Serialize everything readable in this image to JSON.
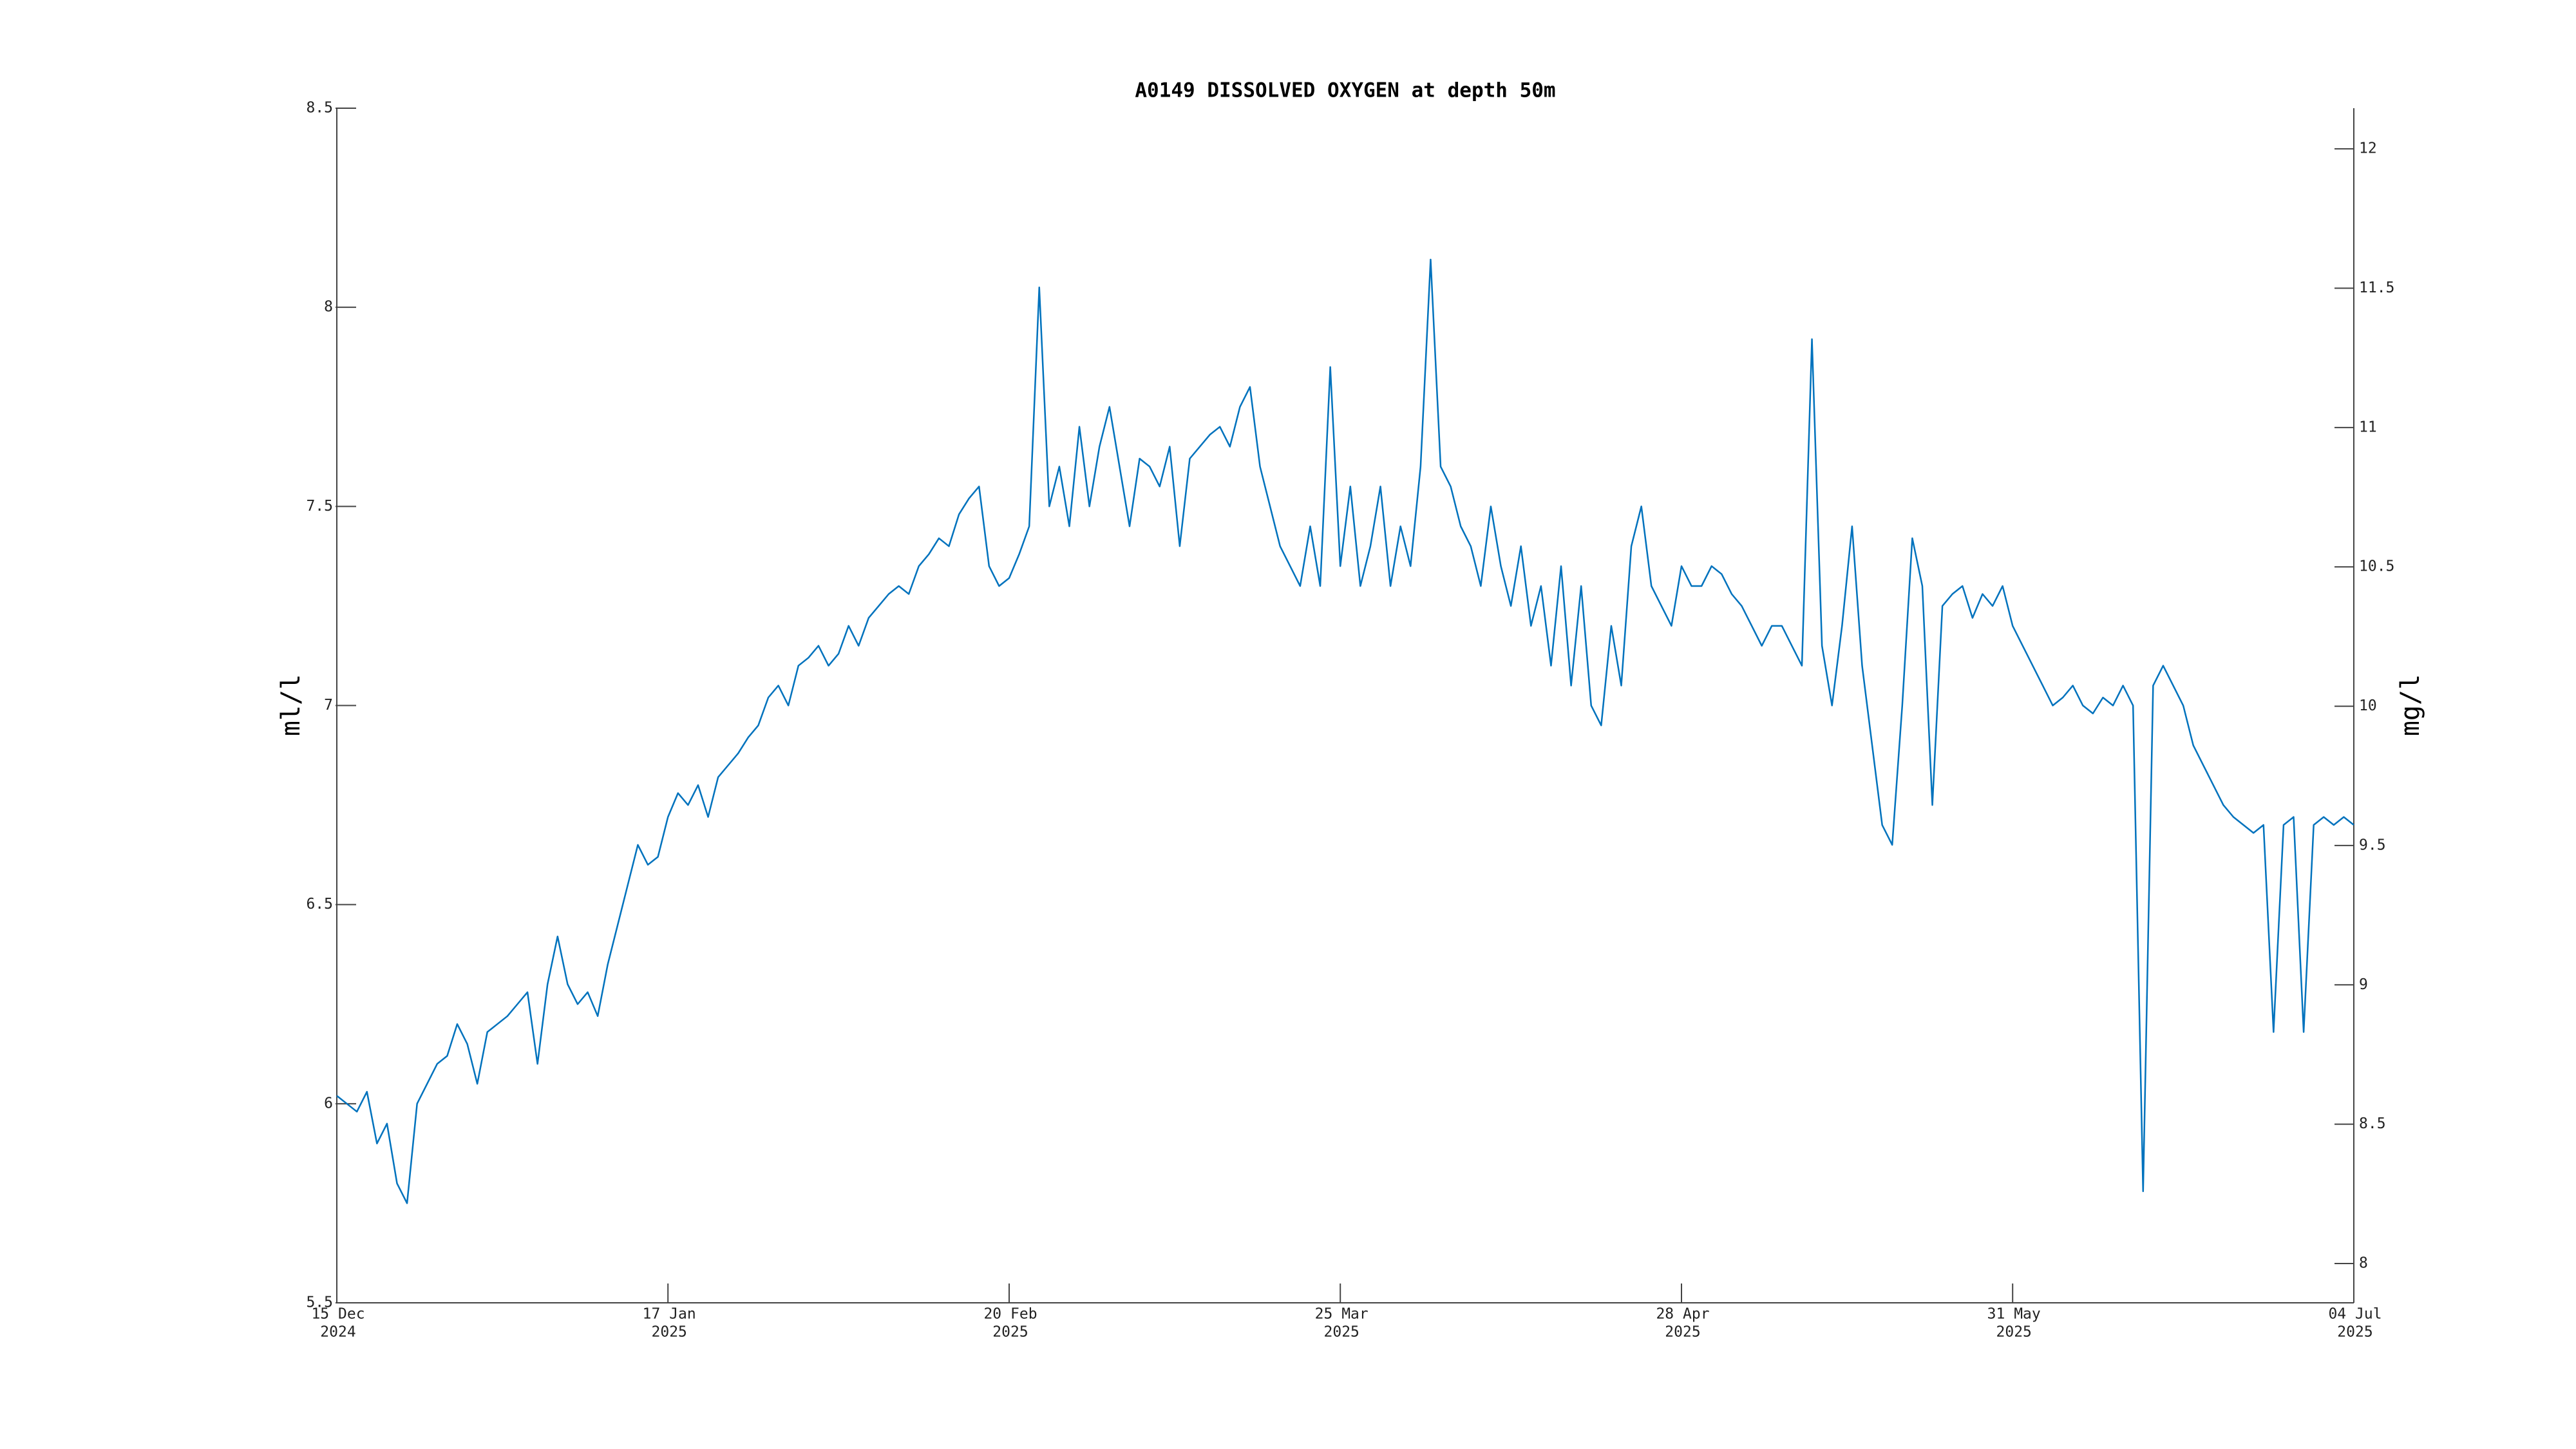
{
  "chart_data": {
    "type": "line",
    "title": "A0149 DISSOLVED OXYGEN at depth 50m",
    "ylabel": "ml/l",
    "y2label": "mg/l",
    "color": "#0072bd",
    "xlim": [
      "2024-12-15",
      "2025-07-04"
    ],
    "xticks": [
      {
        "value": "2024-12-15",
        "label": [
          "15 Dec",
          "2024"
        ]
      },
      {
        "value": "2025-01-17",
        "label": [
          "17 Jan",
          "2025"
        ]
      },
      {
        "value": "2025-02-20",
        "label": [
          "20 Feb",
          "2025"
        ]
      },
      {
        "value": "2025-03-25",
        "label": [
          "25 Mar",
          "2025"
        ]
      },
      {
        "value": "2025-04-28",
        "label": [
          "28 Apr",
          "2025"
        ]
      },
      {
        "value": "2025-05-31",
        "label": [
          "31 May",
          "2025"
        ]
      },
      {
        "value": "2025-07-04",
        "label": [
          "04 Jul",
          "2025"
        ]
      }
    ],
    "ylim": [
      5.5,
      8.5
    ],
    "yticks": [
      5.5,
      6,
      6.5,
      7,
      7.5,
      8,
      8.5
    ],
    "y2lim": [
      7.859,
      12.146
    ],
    "y2ticks": [
      8,
      8.5,
      9,
      9.5,
      10,
      10.5,
      11,
      11.5,
      12
    ],
    "x": [
      "2024-12-15",
      "2024-12-16",
      "2024-12-17",
      "2024-12-18",
      "2024-12-19",
      "2024-12-20",
      "2024-12-21",
      "2024-12-22",
      "2024-12-23",
      "2024-12-24",
      "2024-12-25",
      "2024-12-26",
      "2024-12-27",
      "2024-12-28",
      "2024-12-29",
      "2024-12-30",
      "2024-12-31",
      "2025-01-01",
      "2025-01-02",
      "2025-01-03",
      "2025-01-04",
      "2025-01-05",
      "2025-01-06",
      "2025-01-07",
      "2025-01-08",
      "2025-01-09",
      "2025-01-10",
      "2025-01-11",
      "2025-01-12",
      "2025-01-13",
      "2025-01-14",
      "2025-01-15",
      "2025-01-16",
      "2025-01-17",
      "2025-01-18",
      "2025-01-19",
      "2025-01-20",
      "2025-01-21",
      "2025-01-22",
      "2025-01-23",
      "2025-01-24",
      "2025-01-25",
      "2025-01-26",
      "2025-01-27",
      "2025-01-28",
      "2025-01-29",
      "2025-01-30",
      "2025-01-31",
      "2025-02-01",
      "2025-02-02",
      "2025-02-03",
      "2025-02-04",
      "2025-02-05",
      "2025-02-06",
      "2025-02-07",
      "2025-02-08",
      "2025-02-09",
      "2025-02-10",
      "2025-02-11",
      "2025-02-12",
      "2025-02-13",
      "2025-02-14",
      "2025-02-15",
      "2025-02-16",
      "2025-02-17",
      "2025-02-18",
      "2025-02-19",
      "2025-02-20",
      "2025-02-21",
      "2025-02-22",
      "2025-02-23",
      "2025-02-24",
      "2025-02-25",
      "2025-02-26",
      "2025-02-27",
      "2025-02-28",
      "2025-03-01",
      "2025-03-02",
      "2025-03-03",
      "2025-03-04",
      "2025-03-05",
      "2025-03-06",
      "2025-03-07",
      "2025-03-08",
      "2025-03-09",
      "2025-03-10",
      "2025-03-11",
      "2025-03-12",
      "2025-03-13",
      "2025-03-14",
      "2025-03-15",
      "2025-03-16",
      "2025-03-17",
      "2025-03-18",
      "2025-03-19",
      "2025-03-20",
      "2025-03-21",
      "2025-03-22",
      "2025-03-23",
      "2025-03-24",
      "2025-03-25",
      "2025-03-26",
      "2025-03-27",
      "2025-03-28",
      "2025-03-29",
      "2025-03-30",
      "2025-03-31",
      "2025-04-01",
      "2025-04-02",
      "2025-04-03",
      "2025-04-04",
      "2025-04-05",
      "2025-04-06",
      "2025-04-07",
      "2025-04-08",
      "2025-04-09",
      "2025-04-10",
      "2025-04-11",
      "2025-04-12",
      "2025-04-13",
      "2025-04-14",
      "2025-04-15",
      "2025-04-16",
      "2025-04-17",
      "2025-04-18",
      "2025-04-19",
      "2025-04-20",
      "2025-04-21",
      "2025-04-22",
      "2025-04-23",
      "2025-04-24",
      "2025-04-25",
      "2025-04-26",
      "2025-04-27",
      "2025-04-28",
      "2025-04-29",
      "2025-04-30",
      "2025-05-01",
      "2025-05-02",
      "2025-05-03",
      "2025-05-04",
      "2025-05-05",
      "2025-05-06",
      "2025-05-07",
      "2025-05-08",
      "2025-05-09",
      "2025-05-10",
      "2025-05-11",
      "2025-05-12",
      "2025-05-13",
      "2025-05-14",
      "2025-05-15",
      "2025-05-16",
      "2025-05-17",
      "2025-05-18",
      "2025-05-19",
      "2025-05-20",
      "2025-05-21",
      "2025-05-22",
      "2025-05-23",
      "2025-05-24",
      "2025-05-25",
      "2025-05-26",
      "2025-05-27",
      "2025-05-28",
      "2025-05-29",
      "2025-05-30",
      "2025-05-31",
      "2025-06-01",
      "2025-06-02",
      "2025-06-03",
      "2025-06-04",
      "2025-06-05",
      "2025-06-06",
      "2025-06-07",
      "2025-06-08",
      "2025-06-09",
      "2025-06-10",
      "2025-06-11",
      "2025-06-12",
      "2025-06-13",
      "2025-06-14",
      "2025-06-15",
      "2025-06-16",
      "2025-06-17",
      "2025-06-18",
      "2025-06-19",
      "2025-06-20",
      "2025-06-21",
      "2025-06-22",
      "2025-06-23",
      "2025-06-24",
      "2025-06-25",
      "2025-06-26",
      "2025-06-27",
      "2025-06-28",
      "2025-06-29",
      "2025-06-30",
      "2025-07-01",
      "2025-07-02",
      "2025-07-03",
      "2025-07-04"
    ],
    "values": [
      6.02,
      6.0,
      5.98,
      6.03,
      5.9,
      5.95,
      5.8,
      5.75,
      6.0,
      6.05,
      6.1,
      6.12,
      6.2,
      6.15,
      6.05,
      6.18,
      6.2,
      6.22,
      6.25,
      6.28,
      6.1,
      6.3,
      6.42,
      6.3,
      6.25,
      6.28,
      6.22,
      6.35,
      6.45,
      6.55,
      6.65,
      6.6,
      6.62,
      6.72,
      6.78,
      6.75,
      6.8,
      6.72,
      6.82,
      6.85,
      6.88,
      6.92,
      6.95,
      7.02,
      7.05,
      7.0,
      7.1,
      7.12,
      7.15,
      7.1,
      7.13,
      7.2,
      7.15,
      7.22,
      7.25,
      7.28,
      7.3,
      7.28,
      7.35,
      7.38,
      7.42,
      7.4,
      7.48,
      7.52,
      7.55,
      7.35,
      7.3,
      7.32,
      7.38,
      7.45,
      8.05,
      7.5,
      7.6,
      7.45,
      7.7,
      7.5,
      7.65,
      7.75,
      7.6,
      7.45,
      7.62,
      7.6,
      7.55,
      7.65,
      7.4,
      7.62,
      7.65,
      7.68,
      7.7,
      7.65,
      7.75,
      7.8,
      7.6,
      7.5,
      7.4,
      7.35,
      7.3,
      7.45,
      7.3,
      7.85,
      7.35,
      7.55,
      7.3,
      7.4,
      7.55,
      7.3,
      7.45,
      7.35,
      7.6,
      8.12,
      7.6,
      7.55,
      7.45,
      7.4,
      7.3,
      7.5,
      7.35,
      7.25,
      7.4,
      7.2,
      7.3,
      7.1,
      7.35,
      7.05,
      7.3,
      7.0,
      6.95,
      7.2,
      7.05,
      7.4,
      7.5,
      7.3,
      7.25,
      7.2,
      7.35,
      7.3,
      7.3,
      7.35,
      7.33,
      7.28,
      7.25,
      7.2,
      7.15,
      7.2,
      7.2,
      7.15,
      7.1,
      7.92,
      7.15,
      7.0,
      7.2,
      7.45,
      7.1,
      6.9,
      6.7,
      6.65,
      7.0,
      7.42,
      7.3,
      6.75,
      7.25,
      7.28,
      7.3,
      7.22,
      7.28,
      7.25,
      7.3,
      7.2,
      7.15,
      7.1,
      7.05,
      7.0,
      7.02,
      7.05,
      7.0,
      6.98,
      7.02,
      7.0,
      7.05,
      7.0,
      5.78,
      7.05,
      7.1,
      7.05,
      7.0,
      6.9,
      6.85,
      6.8,
      6.75,
      6.72,
      6.7,
      6.68,
      6.7,
      6.18,
      6.7,
      6.72,
      6.18,
      6.7,
      6.72,
      6.7,
      6.72,
      6.7
    ]
  }
}
